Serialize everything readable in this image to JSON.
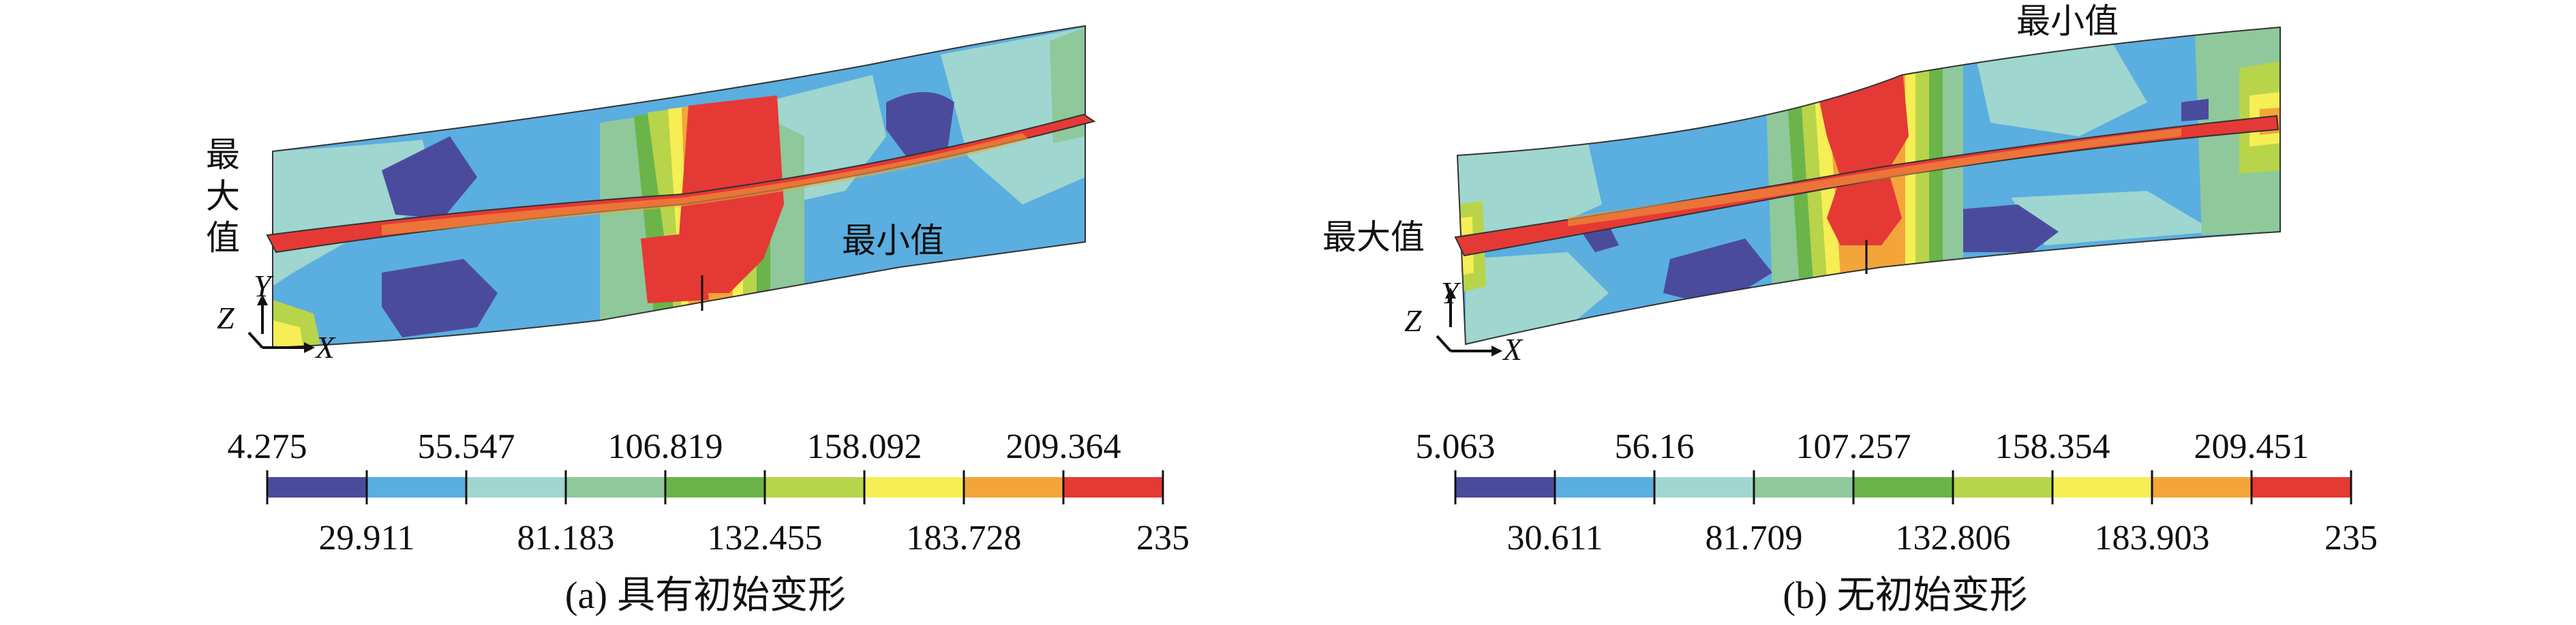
{
  "panels": [
    {
      "id": "a",
      "caption": "(a) 具有初始变形",
      "max_label": [
        "最",
        "大",
        "值"
      ],
      "min_label": "最小值",
      "axis_labels": {
        "z": "Z",
        "y": "Y",
        "x": "X"
      },
      "legend": {
        "top_ticks": [
          "4.275",
          "55.547",
          "106.819",
          "158.092",
          "209.364"
        ],
        "bottom_ticks": [
          "29.911",
          "81.183",
          "132.455",
          "183.728",
          "235"
        ]
      }
    },
    {
      "id": "b",
      "caption": "(b) 无初始变形",
      "max_label": [
        "最大值"
      ],
      "min_label": "最小值",
      "axis_labels": {
        "z": "Z",
        "y": "Y",
        "x": "X"
      },
      "legend": {
        "top_ticks": [
          "5.063",
          "56.16",
          "107.257",
          "158.354",
          "209.451"
        ],
        "bottom_ticks": [
          "30.611",
          "81.709",
          "132.806",
          "183.903",
          "235"
        ]
      }
    }
  ],
  "colors": {
    "band_0": "#4b4b9e",
    "band_1": "#5aaee0",
    "band_2": "#9fd6cf",
    "band_3": "#8fc89a",
    "band_4": "#6ab44a",
    "band_5": "#b8d44a",
    "band_6": "#f6ee55",
    "band_7": "#f3a53a",
    "band_8": "#e53935",
    "outline": "#333333"
  }
}
